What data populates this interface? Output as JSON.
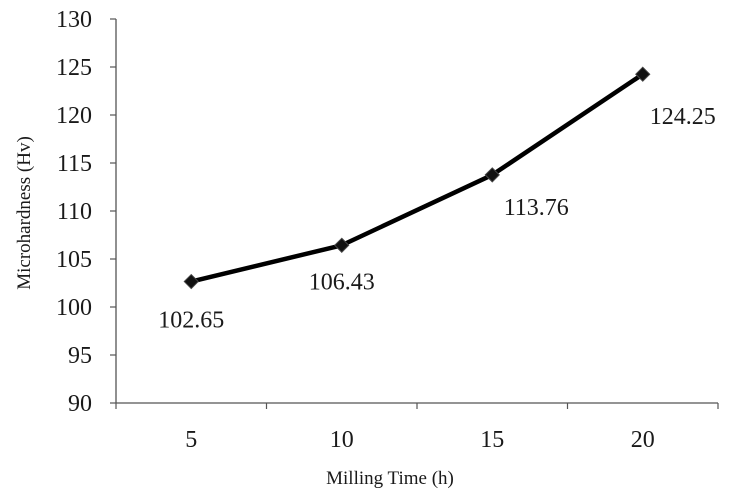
{
  "chart_data": {
    "type": "line",
    "title": "",
    "xlabel": "Milling Time (h)",
    "ylabel": "Microhardness (Hv)",
    "x": [
      5,
      10,
      15,
      20
    ],
    "series": [
      {
        "values": [
          102.65,
          106.43,
          113.76,
          124.25
        ],
        "color": "#000000",
        "marker": "diamond",
        "data_labels": [
          "102.65",
          "106.43",
          "113.76",
          "124.25"
        ]
      }
    ],
    "xticks": [
      "5",
      "10",
      "15",
      "20"
    ],
    "yticks": [
      "90",
      "95",
      "100",
      "105",
      "110",
      "115",
      "120",
      "125",
      "130"
    ],
    "ylim": [
      90,
      130
    ],
    "grid": false,
    "legend": "none"
  }
}
